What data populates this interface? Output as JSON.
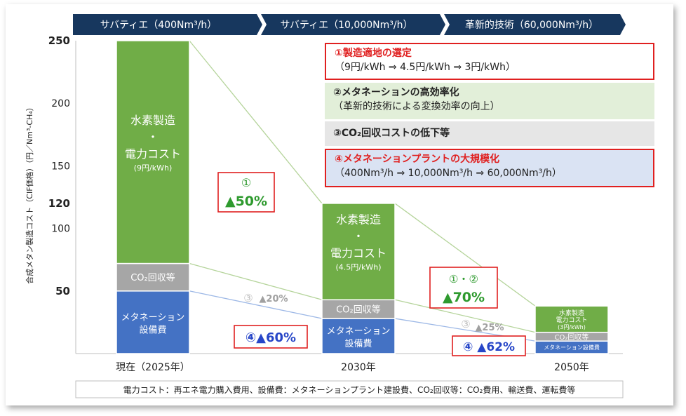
{
  "chart_data": {
    "type": "bar",
    "stacked": true,
    "ylabel": "合成メタン製造コスト（CIF価格）（円／Nm³-CH₄）",
    "y_ticks": [
      50,
      100,
      120,
      150,
      200,
      250
    ],
    "ylim": [
      0,
      250
    ],
    "categories": [
      "現在（2025年）",
      "2030年",
      "2050年"
    ],
    "series": [
      {
        "name": "メタネーション設備費",
        "color": "#4472c4",
        "values": [
          50,
          28,
          10
        ]
      },
      {
        "name": "CO₂回収等",
        "color": "#a6a6a6",
        "values": [
          22,
          15,
          7
        ]
      },
      {
        "name": "水素製造・電力コスト",
        "color": "#70ad47",
        "values": [
          178,
          77,
          21
        ]
      }
    ],
    "segment_labels": {
      "hydrogen": [
        "水素製造",
        "・",
        "電力コスト"
      ],
      "hydrogen_small": "水素製造電力コスト",
      "co2": "CO₂回収等",
      "methanation": [
        "メタネーション",
        "設備費"
      ],
      "methanation_small": "メタネーション設備費"
    },
    "unit_prices": [
      "(9円/kWh)",
      "(4.5円/kWh)",
      "(3円/kWh)"
    ],
    "phases": [
      "サバティエ（400Nm³/h）",
      "サバティエ（10,000Nm³/h）",
      "革新的技術（60,000Nm³/h）"
    ],
    "annotations": [
      {
        "id": "a1",
        "circle": "①",
        "text": "▲50%"
      },
      {
        "id": "a2",
        "circle": "③",
        "text": "▲20%"
      },
      {
        "id": "a3",
        "circle": "④",
        "text": "▲60%"
      },
      {
        "id": "a4",
        "circle": "①・②",
        "text": "▲70%"
      },
      {
        "id": "a5",
        "circle": "③",
        "text": "▲25%"
      },
      {
        "id": "a6",
        "circle": "④",
        "text": "▲62%"
      }
    ]
  },
  "factors": [
    {
      "title": "①製造適地の選定",
      "sub": "（9円/kWh ⇒ 4.5円/kWh ⇒ 3円/kWh）"
    },
    {
      "title": "②メタネーションの高効率化",
      "sub": "（革新的技術による変換効率の向上）"
    },
    {
      "title": "③CO₂回収コストの低下等",
      "sub": ""
    },
    {
      "title": "④メタネーションプラントの大規模化",
      "sub": "（400Nm³/h ⇒ 10,000Nm³/h ⇒ 60,000Nm³/h）"
    }
  ],
  "footnote": "電力コスト：再エネ電力購入費用、設備費：メタネーションプラント建設費、CO₂回収等：CO₂費用、輸送費、運転費等",
  "colors": {
    "navy": "#17375e",
    "red": "#e02020",
    "green": "#2e9a2e",
    "gray": "#a6a6a6",
    "blue": "#4472c4"
  }
}
